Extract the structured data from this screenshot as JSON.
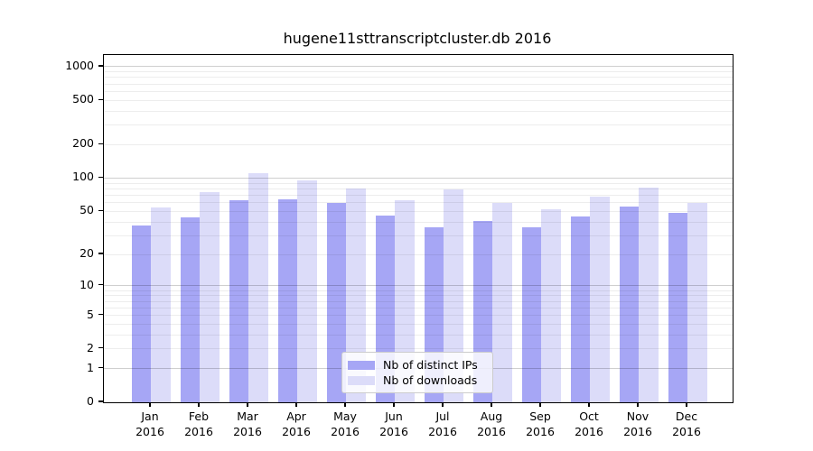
{
  "chart_data": {
    "type": "bar",
    "title": "hugene11sttranscriptcluster.db 2016",
    "categories": [
      "Jan",
      "Feb",
      "Mar",
      "Apr",
      "May",
      "Jun",
      "Jul",
      "Aug",
      "Sep",
      "Oct",
      "Nov",
      "Dec"
    ],
    "category_year": "2016",
    "series": [
      {
        "name": "Nb of distinct IPs",
        "color": "#a6a6f5",
        "values": [
          37,
          44,
          63,
          64,
          60,
          46,
          36,
          41,
          36,
          45,
          55,
          48
        ]
      },
      {
        "name": "Nb of downloads",
        "color": "#dcdcf9",
        "values": [
          54,
          74,
          111,
          95,
          80,
          63,
          79,
          60,
          52,
          68,
          82,
          60
        ]
      }
    ],
    "y_axis": {
      "scale": "log10(value+1)",
      "tick_values": [
        1000,
        500,
        200,
        100,
        50,
        20,
        10,
        5,
        2,
        1,
        0
      ],
      "ylim": [
        0,
        1250
      ]
    },
    "grid": {
      "enabled": true,
      "major_values": [
        1,
        10,
        100,
        1000
      ],
      "minor_decades": [
        1,
        10,
        100
      ]
    },
    "legend": {
      "position": "bottom-center"
    }
  },
  "colors": {
    "bar_distinct_ips": "#a6a6f5",
    "bar_downloads": "#dcdcf9",
    "grid_minor": "#ededed",
    "grid_major": "#cfcfcf",
    "axis": "#000000",
    "legend_border": "#cccccc"
  }
}
